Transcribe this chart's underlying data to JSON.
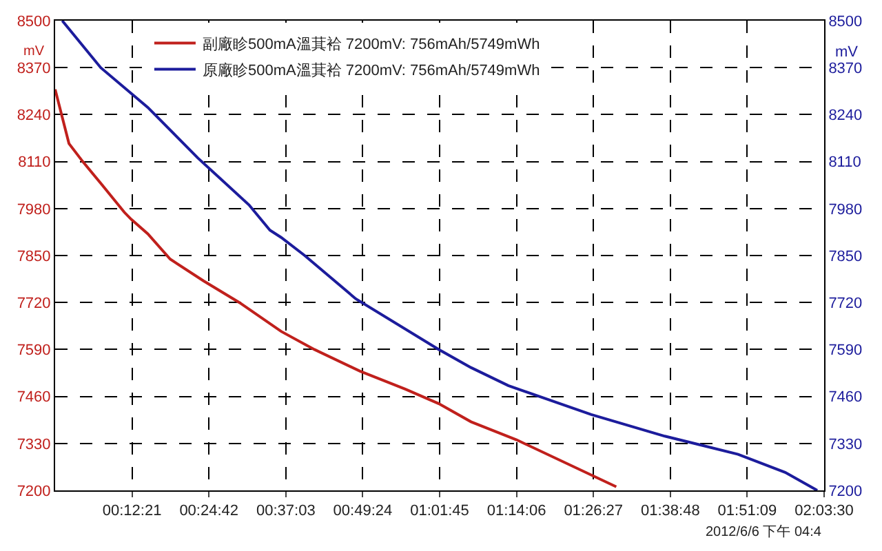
{
  "chart_data": {
    "type": "line",
    "ylabel": "mV",
    "y2label": "mV",
    "xlim": [
      0,
      2.05833
    ],
    "xticks": [
      {
        "value": 0.20583,
        "label": "00:12:21"
      },
      {
        "value": 0.41167,
        "label": "00:24:42"
      },
      {
        "value": 0.6175,
        "label": "00:37:03"
      },
      {
        "value": 0.82333,
        "label": "00:49:24"
      },
      {
        "value": 1.02917,
        "label": "01:01:45"
      },
      {
        "value": 1.235,
        "label": "01:14:06"
      },
      {
        "value": 1.44083,
        "label": "01:26:27"
      },
      {
        "value": 1.64667,
        "label": "01:38:48"
      },
      {
        "value": 1.8525,
        "label": "01:51:09"
      },
      {
        "value": 2.05833,
        "label": "02:03:30"
      }
    ],
    "ylim": [
      7200,
      8500
    ],
    "yticks": [
      7200,
      7330,
      7460,
      7590,
      7720,
      7850,
      7980,
      8110,
      8240,
      8370,
      8500
    ],
    "y2lim": [
      7200,
      8500
    ],
    "y2ticks": [
      7200,
      7330,
      7460,
      7590,
      7720,
      7850,
      7980,
      8110,
      8240,
      8370,
      8500
    ],
    "grid": true,
    "legend": "top left",
    "marker": "none",
    "line_style": "solid",
    "annotations": [
      "2012/6/6 下午 04:4"
    ],
    "series": [
      {
        "name": "副廠眕500mA溫萁袷 7200mV: 756mAh/5749mWh",
        "color": "#c0201c",
        "x": [
          0,
          0.037,
          0.074,
          0.122,
          0.185,
          0.204,
          0.248,
          0.308,
          0.397,
          0.493,
          0.605,
          0.694,
          0.816,
          0.938,
          1.027,
          1.113,
          1.235,
          1.502
        ],
        "values": [
          8310,
          8160,
          8110,
          8050,
          7970,
          7950,
          7910,
          7840,
          7780,
          7720,
          7640,
          7590,
          7530,
          7480,
          7440,
          7390,
          7340,
          7210
        ]
      },
      {
        "name": "原廠眕500mA溫萁袷 7200mV: 756mAh/5749mWh",
        "color": "#1c1c9c",
        "x": [
          0.019,
          0.122,
          0.248,
          0.382,
          0.519,
          0.575,
          0.605,
          0.668,
          0.805,
          1.027,
          1.113,
          1.213,
          1.435,
          1.632,
          1.828,
          1.954,
          2.04
        ],
        "values": [
          8500,
          8370,
          8260,
          8120,
          7990,
          7920,
          7900,
          7850,
          7730,
          7590,
          7540,
          7490,
          7410,
          7350,
          7300,
          7250,
          7200
        ]
      }
    ]
  }
}
